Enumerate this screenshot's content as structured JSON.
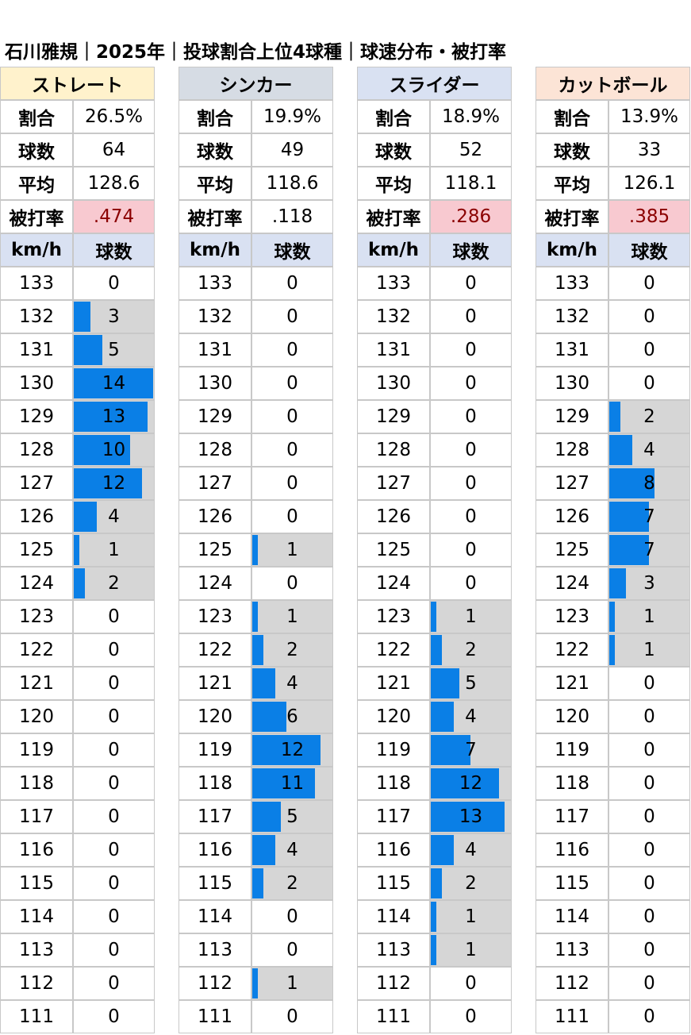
{
  "title": "石川雅規｜2025年｜投球割合上位4球種｜球速分布・被打率",
  "labels": {
    "ratio": "割合",
    "count": "球数",
    "avg": "平均",
    "hit": "被打率",
    "speed_unit": "km/h",
    "count_col": "球数"
  },
  "colors": {
    "bar": "#0a7fe6",
    "bar_bg": "#d6d6d6",
    "hit_highlight": "#f8c9d0",
    "hit_text": "#8b0000",
    "col_header": "#d9e1f2"
  },
  "chart_data": {
    "type": "table",
    "speeds": [
      133,
      132,
      131,
      130,
      129,
      128,
      127,
      126,
      125,
      124,
      123,
      122,
      121,
      120,
      119,
      118,
      117,
      116,
      115,
      114,
      113,
      112,
      111
    ],
    "bar_max": 14,
    "pitches": [
      {
        "name": "ストレート",
        "header_color": "#fff2cc",
        "ratio": "26.5%",
        "count": "64",
        "avg": "128.6",
        "hit": ".474",
        "hit_highlight": true,
        "counts": [
          0,
          3,
          5,
          14,
          13,
          10,
          12,
          4,
          1,
          2,
          0,
          0,
          0,
          0,
          0,
          0,
          0,
          0,
          0,
          0,
          0,
          0,
          0
        ]
      },
      {
        "name": "シンカー",
        "header_color": "#d6dce4",
        "ratio": "19.9%",
        "count": "49",
        "avg": "118.6",
        "hit": ".118",
        "hit_highlight": false,
        "counts": [
          0,
          0,
          0,
          0,
          0,
          0,
          0,
          0,
          1,
          0,
          1,
          2,
          4,
          6,
          12,
          11,
          5,
          4,
          2,
          0,
          0,
          1,
          0
        ]
      },
      {
        "name": "スライダー",
        "header_color": "#d9e1f2",
        "ratio": "18.9%",
        "count": "52",
        "avg": "118.1",
        "hit": ".286",
        "hit_highlight": true,
        "counts": [
          0,
          0,
          0,
          0,
          0,
          0,
          0,
          0,
          0,
          0,
          1,
          2,
          5,
          4,
          7,
          12,
          13,
          4,
          2,
          1,
          1,
          0,
          0
        ]
      },
      {
        "name": "カットボール",
        "header_color": "#fce4d6",
        "ratio": "13.9%",
        "count": "33",
        "avg": "126.1",
        "hit": ".385",
        "hit_highlight": true,
        "counts": [
          0,
          0,
          0,
          0,
          2,
          4,
          8,
          7,
          7,
          3,
          1,
          1,
          0,
          0,
          0,
          0,
          0,
          0,
          0,
          0,
          0,
          0,
          0
        ]
      }
    ]
  }
}
